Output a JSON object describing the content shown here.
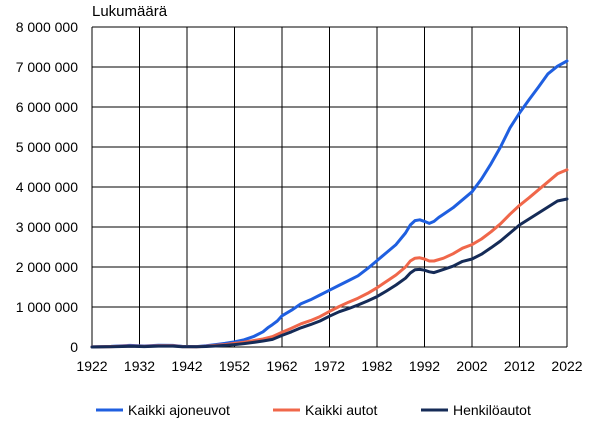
{
  "chart_data": {
    "type": "line",
    "title": "",
    "ylabel": "Lukumäärä",
    "xlabel": "",
    "xlim": [
      1922,
      2022
    ],
    "ylim": [
      0,
      8000000
    ],
    "x_ticks": [
      1922,
      1932,
      1942,
      1952,
      1962,
      1972,
      1982,
      1992,
      2002,
      2012,
      2022
    ],
    "y_ticks": [
      0,
      1000000,
      2000000,
      3000000,
      4000000,
      5000000,
      6000000,
      7000000,
      8000000
    ],
    "y_tick_labels": [
      "0",
      "1 000 000",
      "2 000 000",
      "3 000 000",
      "4 000 000",
      "5 000 000",
      "6 000 000",
      "7 000 000",
      "8 000 000"
    ],
    "x_tick_labels": [
      "1922",
      "1932",
      "1942",
      "1952",
      "1962",
      "1972",
      "1982",
      "1992",
      "2002",
      "2012",
      "2022"
    ],
    "grid": true,
    "legend_position": "bottom",
    "series": [
      {
        "name": "Kaikki ajoneuvot",
        "color": "#1f5fe0",
        "points": [
          [
            1922,
            3000
          ],
          [
            1926,
            15000
          ],
          [
            1930,
            40000
          ],
          [
            1933,
            25000
          ],
          [
            1936,
            45000
          ],
          [
            1939,
            40000
          ],
          [
            1941,
            15000
          ],
          [
            1944,
            10000
          ],
          [
            1946,
            30000
          ],
          [
            1948,
            60000
          ],
          [
            1950,
            90000
          ],
          [
            1952,
            130000
          ],
          [
            1954,
            180000
          ],
          [
            1956,
            260000
          ],
          [
            1958,
            380000
          ],
          [
            1959,
            480000
          ],
          [
            1960,
            560000
          ],
          [
            1961,
            650000
          ],
          [
            1962,
            780000
          ],
          [
            1964,
            920000
          ],
          [
            1966,
            1080000
          ],
          [
            1968,
            1180000
          ],
          [
            1970,
            1300000
          ],
          [
            1972,
            1420000
          ],
          [
            1974,
            1540000
          ],
          [
            1976,
            1660000
          ],
          [
            1978,
            1780000
          ],
          [
            1980,
            1960000
          ],
          [
            1982,
            2160000
          ],
          [
            1984,
            2360000
          ],
          [
            1986,
            2560000
          ],
          [
            1988,
            2850000
          ],
          [
            1989,
            3050000
          ],
          [
            1990,
            3160000
          ],
          [
            1991,
            3180000
          ],
          [
            1992,
            3140000
          ],
          [
            1993,
            3090000
          ],
          [
            1994,
            3140000
          ],
          [
            1995,
            3240000
          ],
          [
            1996,
            3320000
          ],
          [
            1998,
            3480000
          ],
          [
            2000,
            3680000
          ],
          [
            2002,
            3880000
          ],
          [
            2004,
            4200000
          ],
          [
            2006,
            4580000
          ],
          [
            2008,
            5000000
          ],
          [
            2010,
            5480000
          ],
          [
            2012,
            5850000
          ],
          [
            2014,
            6180000
          ],
          [
            2016,
            6500000
          ],
          [
            2018,
            6830000
          ],
          [
            2020,
            7020000
          ],
          [
            2022,
            7150000
          ]
        ]
      },
      {
        "name": "Kaikki autot",
        "color": "#f0674a",
        "points": [
          [
            1922,
            2000
          ],
          [
            1926,
            10000
          ],
          [
            1930,
            25000
          ],
          [
            1933,
            15000
          ],
          [
            1936,
            30000
          ],
          [
            1939,
            30000
          ],
          [
            1941,
            10000
          ],
          [
            1944,
            8000
          ],
          [
            1946,
            20000
          ],
          [
            1948,
            40000
          ],
          [
            1950,
            60000
          ],
          [
            1952,
            90000
          ],
          [
            1954,
            120000
          ],
          [
            1956,
            160000
          ],
          [
            1958,
            200000
          ],
          [
            1960,
            260000
          ],
          [
            1962,
            370000
          ],
          [
            1964,
            470000
          ],
          [
            1966,
            580000
          ],
          [
            1968,
            660000
          ],
          [
            1970,
            760000
          ],
          [
            1972,
            890000
          ],
          [
            1974,
            1010000
          ],
          [
            1976,
            1120000
          ],
          [
            1978,
            1220000
          ],
          [
            1980,
            1340000
          ],
          [
            1982,
            1480000
          ],
          [
            1984,
            1640000
          ],
          [
            1986,
            1800000
          ],
          [
            1988,
            2000000
          ],
          [
            1989,
            2150000
          ],
          [
            1990,
            2220000
          ],
          [
            1991,
            2230000
          ],
          [
            1992,
            2200000
          ],
          [
            1993,
            2150000
          ],
          [
            1994,
            2150000
          ],
          [
            1996,
            2220000
          ],
          [
            1998,
            2330000
          ],
          [
            2000,
            2470000
          ],
          [
            2002,
            2560000
          ],
          [
            2004,
            2700000
          ],
          [
            2006,
            2880000
          ],
          [
            2008,
            3080000
          ],
          [
            2010,
            3320000
          ],
          [
            2012,
            3540000
          ],
          [
            2014,
            3730000
          ],
          [
            2016,
            3930000
          ],
          [
            2018,
            4130000
          ],
          [
            2020,
            4330000
          ],
          [
            2022,
            4430000
          ]
        ]
      },
      {
        "name": "Henkilöautot",
        "color": "#152b57",
        "points": [
          [
            1922,
            1000
          ],
          [
            1926,
            8000
          ],
          [
            1930,
            18000
          ],
          [
            1933,
            10000
          ],
          [
            1936,
            22000
          ],
          [
            1939,
            22000
          ],
          [
            1941,
            8000
          ],
          [
            1944,
            6000
          ],
          [
            1946,
            12000
          ],
          [
            1948,
            25000
          ],
          [
            1950,
            40000
          ],
          [
            1952,
            60000
          ],
          [
            1954,
            85000
          ],
          [
            1956,
            115000
          ],
          [
            1958,
            150000
          ],
          [
            1960,
            190000
          ],
          [
            1962,
            290000
          ],
          [
            1964,
            380000
          ],
          [
            1966,
            480000
          ],
          [
            1968,
            560000
          ],
          [
            1970,
            650000
          ],
          [
            1972,
            770000
          ],
          [
            1974,
            880000
          ],
          [
            1976,
            960000
          ],
          [
            1978,
            1050000
          ],
          [
            1980,
            1150000
          ],
          [
            1982,
            1260000
          ],
          [
            1984,
            1400000
          ],
          [
            1986,
            1550000
          ],
          [
            1988,
            1720000
          ],
          [
            1989,
            1850000
          ],
          [
            1990,
            1930000
          ],
          [
            1991,
            1940000
          ],
          [
            1992,
            1920000
          ],
          [
            1993,
            1880000
          ],
          [
            1994,
            1860000
          ],
          [
            1996,
            1940000
          ],
          [
            1998,
            2020000
          ],
          [
            2000,
            2140000
          ],
          [
            2002,
            2200000
          ],
          [
            2004,
            2320000
          ],
          [
            2006,
            2480000
          ],
          [
            2008,
            2650000
          ],
          [
            2010,
            2850000
          ],
          [
            2012,
            3050000
          ],
          [
            2014,
            3200000
          ],
          [
            2016,
            3350000
          ],
          [
            2018,
            3500000
          ],
          [
            2020,
            3650000
          ],
          [
            2022,
            3700000
          ]
        ]
      }
    ]
  }
}
